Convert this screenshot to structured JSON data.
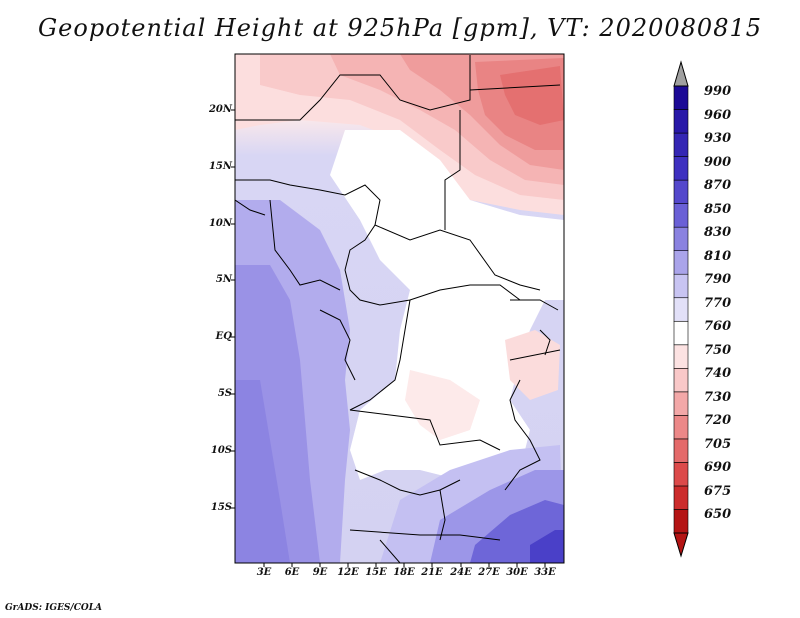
{
  "title": "Geopotential Height at 925hPa [gpm], VT: 2020080815",
  "map": {
    "variable": "Geopotential Height",
    "level": "925hPa",
    "units": "gpm",
    "valid_time": "2020080815",
    "lat_ticks": [
      "20N",
      "15N",
      "10N",
      "5N",
      "EQ",
      "5S",
      "10S",
      "15S"
    ],
    "lon_ticks": [
      "3E",
      "6E",
      "9E",
      "12E",
      "15E",
      "18E",
      "21E",
      "24E",
      "27E",
      "30E",
      "33E"
    ]
  },
  "colorbar": {
    "levels": [
      "990",
      "960",
      "930",
      "900",
      "870",
      "850",
      "830",
      "810",
      "790",
      "770",
      "760",
      "750",
      "740",
      "730",
      "720",
      "705",
      "690",
      "675",
      "650"
    ],
    "colors": [
      "#1c0a96",
      "#2818a8",
      "#3426b4",
      "#3e30c0",
      "#5448cc",
      "#6a60d6",
      "#8a82e0",
      "#aaa4ea",
      "#c8c4f2",
      "#e2e0f8",
      "#ffffff",
      "#fce2e2",
      "#f9c8c8",
      "#f3a8a8",
      "#ec8888",
      "#e46a6a",
      "#dc4a4a",
      "#cc2c2c",
      "#b41414"
    ]
  },
  "credit": "GrADS: IGES/COLA"
}
